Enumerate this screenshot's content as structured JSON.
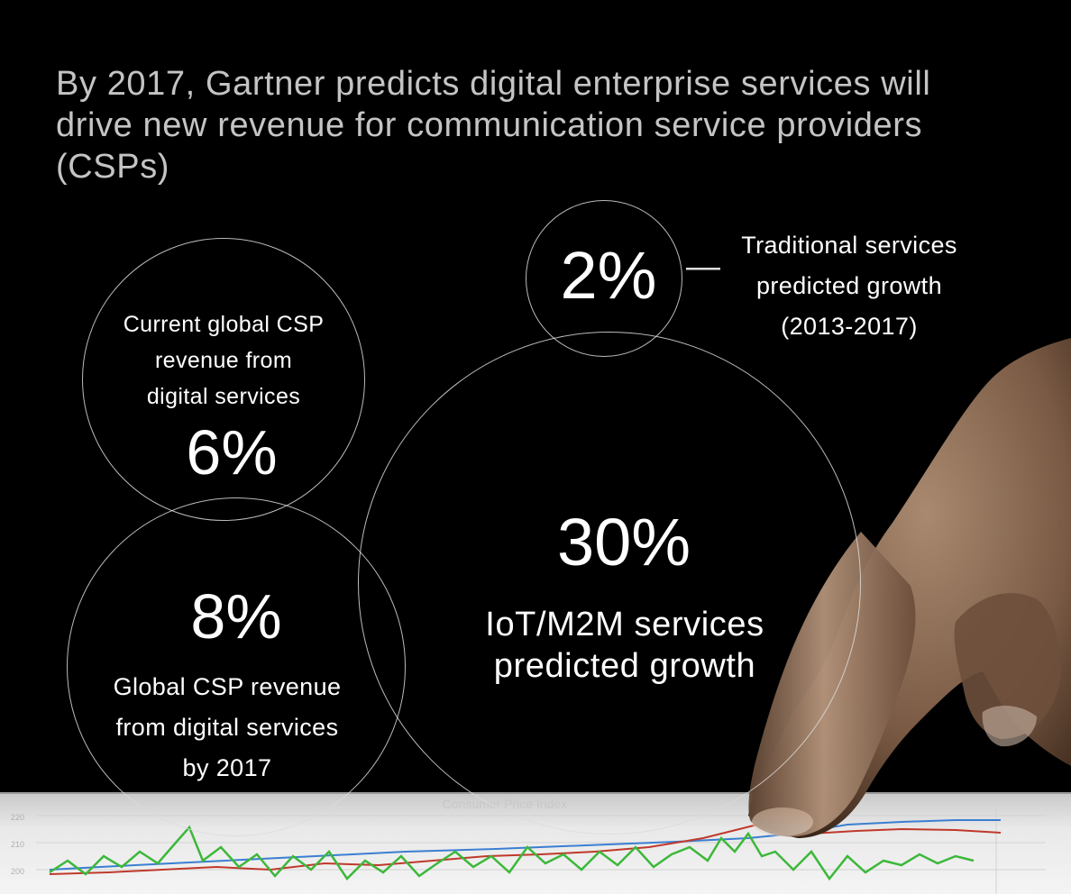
{
  "headline": "By 2017, Gartner predicts digital enterprise services will drive new revenue for communication service providers (CSPs)",
  "stats": {
    "current": {
      "caption_lines": [
        "Current global CSP",
        "revenue from",
        "digital services"
      ],
      "value": "6%"
    },
    "future": {
      "value": "8%",
      "caption_lines": [
        "Global CSP revenue",
        "from digital services",
        "by 2017"
      ]
    },
    "traditional": {
      "value": "2%",
      "dash": "—",
      "caption_lines": [
        "Traditional services",
        "predicted growth",
        "(2013-2017)"
      ]
    },
    "iot": {
      "value": "30%",
      "caption_lines": [
        "IoT/M2M services",
        "predicted growth"
      ]
    }
  },
  "background_chart": {
    "title": "Consumer Price Index",
    "tick_labels": [
      "220",
      "210",
      "200"
    ]
  },
  "colors": {
    "background": "#000000",
    "headline": "#c4c4c4",
    "circle_stroke": "#dcdcdc",
    "line_green": "#3cb83a",
    "line_red": "#c0392b",
    "line_blue": "#3b7fd1",
    "skin": "#8a6a52"
  }
}
